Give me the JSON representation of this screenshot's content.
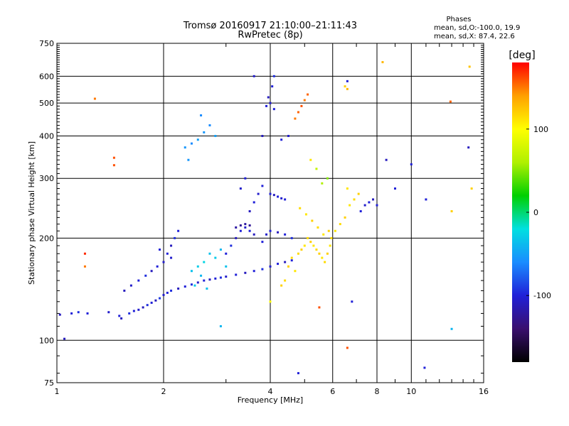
{
  "chart_data": {
    "type": "scatter",
    "title": "Tromsø 20160917 21:10:00–21:11:43",
    "subtitle": "RwPretec (8p)",
    "xlabel": "Frequency [MHz]",
    "ylabel": "Stationary phase Virtual Height [km]",
    "x_scale": "log",
    "y_scale": "log",
    "xlim": [
      1,
      16
    ],
    "ylim": [
      75,
      750
    ],
    "x_ticks": [
      1,
      2,
      4,
      6,
      8,
      10,
      16
    ],
    "y_ticks": [
      75,
      100,
      200,
      300,
      400,
      500,
      600,
      750
    ],
    "grid": true,
    "stats": {
      "heading": "Phases",
      "line1": "mean, sd,O:-100.0, 19.9",
      "line2": "mean, sd,X:  87.4, 22.6"
    },
    "colorbar": {
      "label": "[deg]",
      "ticks": [
        100,
        0,
        -100
      ],
      "tick_labels": [
        "100",
        "0",
        "-100"
      ],
      "range": [
        -180,
        180
      ],
      "colors": [
        "#000000",
        "#3a0f6e",
        "#2020d8",
        "#1a8cff",
        "#00e0e0",
        "#00d000",
        "#b0f000",
        "#ffff00",
        "#ffa000",
        "#ff0000"
      ]
    },
    "series": [
      {
        "points": [
          [
            1.02,
            119,
            -110
          ],
          [
            1.1,
            120,
            -100
          ],
          [
            1.15,
            121,
            -95
          ],
          [
            1.22,
            120,
            -100
          ],
          [
            1.4,
            121,
            -105
          ],
          [
            1.5,
            118,
            -100
          ],
          [
            1.52,
            116,
            -110
          ],
          [
            1.6,
            120,
            -95
          ],
          [
            1.65,
            122,
            -100
          ],
          [
            1.7,
            123,
            -105
          ],
          [
            1.75,
            125,
            -110
          ],
          [
            1.8,
            127,
            -95
          ],
          [
            1.85,
            129,
            -100
          ],
          [
            1.9,
            131,
            -110
          ],
          [
            1.95,
            133,
            -90
          ],
          [
            2.0,
            136,
            -105
          ],
          [
            2.05,
            138,
            -100
          ],
          [
            2.1,
            140,
            -95
          ],
          [
            2.2,
            142,
            -110
          ],
          [
            2.3,
            144,
            -100
          ],
          [
            2.4,
            146,
            -95
          ],
          [
            2.5,
            148,
            -105
          ],
          [
            2.6,
            150,
            -100
          ],
          [
            2.7,
            151,
            -110
          ],
          [
            2.8,
            152,
            -100
          ],
          [
            2.9,
            153,
            -95
          ],
          [
            3.0,
            154,
            -105
          ],
          [
            3.2,
            156,
            -100
          ],
          [
            3.4,
            158,
            -110
          ],
          [
            3.6,
            160,
            -100
          ],
          [
            3.8,
            162,
            -95
          ],
          [
            4.0,
            165,
            -105
          ],
          [
            4.2,
            168,
            -100
          ],
          [
            4.4,
            170,
            -110
          ],
          [
            4.6,
            172,
            -100
          ],
          [
            1.55,
            140,
            -110
          ],
          [
            1.62,
            145,
            -105
          ],
          [
            1.7,
            150,
            -100
          ],
          [
            1.78,
            155,
            -95
          ],
          [
            1.85,
            160,
            -110
          ],
          [
            1.92,
            165,
            -100
          ],
          [
            2.0,
            170,
            -105
          ],
          [
            2.05,
            180,
            -100
          ],
          [
            2.1,
            190,
            -110
          ],
          [
            2.15,
            200,
            -95
          ],
          [
            2.2,
            210,
            -100
          ],
          [
            2.1,
            175,
            -105
          ],
          [
            1.95,
            185,
            -100
          ],
          [
            2.4,
            160,
            -35
          ],
          [
            2.5,
            165,
            -30
          ],
          [
            2.55,
            155,
            -40
          ],
          [
            2.6,
            170,
            -25
          ],
          [
            2.7,
            180,
            -35
          ],
          [
            2.8,
            175,
            -30
          ],
          [
            2.9,
            185,
            -40
          ],
          [
            3.0,
            165,
            -35
          ],
          [
            2.45,
            145,
            -30
          ],
          [
            2.65,
            142,
            -35
          ],
          [
            3.0,
            180,
            -100
          ],
          [
            3.1,
            190,
            -95
          ],
          [
            3.2,
            200,
            -110
          ],
          [
            3.3,
            210,
            -100
          ],
          [
            3.4,
            215,
            -105
          ],
          [
            3.5,
            210,
            -100
          ],
          [
            3.6,
            205,
            -110
          ],
          [
            3.2,
            215,
            -120
          ],
          [
            3.3,
            218,
            -125
          ],
          [
            3.4,
            220,
            -120
          ],
          [
            3.5,
            218,
            -125
          ],
          [
            3.8,
            195,
            -100
          ],
          [
            3.9,
            205,
            -105
          ],
          [
            4.0,
            210,
            -100
          ],
          [
            4.2,
            208,
            -110
          ],
          [
            4.4,
            205,
            -100
          ],
          [
            4.6,
            200,
            -95
          ],
          [
            3.6,
            255,
            -100
          ],
          [
            3.7,
            270,
            -105
          ],
          [
            3.8,
            285,
            -100
          ],
          [
            3.5,
            240,
            -110
          ],
          [
            3.4,
            300,
            -100
          ],
          [
            3.3,
            280,
            -105
          ],
          [
            4.0,
            270,
            -100
          ],
          [
            4.1,
            268,
            -110
          ],
          [
            4.2,
            265,
            -100
          ],
          [
            4.3,
            262,
            -105
          ],
          [
            4.4,
            260,
            -100
          ],
          [
            2.3,
            370,
            -55
          ],
          [
            2.4,
            380,
            -60
          ],
          [
            2.5,
            390,
            -50
          ],
          [
            2.6,
            410,
            -55
          ],
          [
            2.7,
            430,
            -60
          ],
          [
            2.8,
            400,
            -50
          ],
          [
            2.35,
            340,
            -55
          ],
          [
            2.55,
            460,
            -60
          ],
          [
            3.9,
            490,
            -100
          ],
          [
            4.0,
            500,
            -105
          ],
          [
            4.1,
            480,
            -100
          ],
          [
            3.95,
            520,
            -110
          ],
          [
            4.05,
            560,
            -100
          ],
          [
            4.1,
            600,
            -95
          ],
          [
            3.6,
            600,
            -105
          ],
          [
            3.8,
            400,
            -110
          ],
          [
            4.3,
            390,
            -100
          ],
          [
            4.5,
            400,
            -105
          ],
          [
            4.8,
            180,
            115
          ],
          [
            4.9,
            185,
            120
          ],
          [
            5.0,
            190,
            110
          ],
          [
            5.1,
            200,
            115
          ],
          [
            5.2,
            195,
            120
          ],
          [
            5.3,
            190,
            110
          ],
          [
            5.4,
            185,
            115
          ],
          [
            5.5,
            180,
            120
          ],
          [
            5.6,
            175,
            110
          ],
          [
            5.7,
            170,
            115
          ],
          [
            5.8,
            180,
            120
          ],
          [
            5.9,
            190,
            110
          ],
          [
            5.95,
            200,
            115
          ],
          [
            5.85,
            210,
            120
          ],
          [
            5.65,
            205,
            110
          ],
          [
            5.45,
            215,
            115
          ],
          [
            5.25,
            225,
            120
          ],
          [
            5.05,
            235,
            110
          ],
          [
            4.85,
            245,
            115
          ],
          [
            4.5,
            165,
            120
          ],
          [
            4.6,
            175,
            115
          ],
          [
            4.7,
            160,
            110
          ],
          [
            4.4,
            150,
            115
          ],
          [
            4.3,
            145,
            120
          ],
          [
            6.1,
            210,
            110
          ],
          [
            6.3,
            220,
            115
          ],
          [
            6.5,
            230,
            120
          ],
          [
            6.7,
            250,
            110
          ],
          [
            6.9,
            260,
            115
          ],
          [
            7.1,
            270,
            120
          ],
          [
            6.6,
            280,
            110
          ],
          [
            5.6,
            290,
            60
          ],
          [
            5.8,
            300,
            50
          ],
          [
            5.4,
            320,
            70
          ],
          [
            5.2,
            340,
            110
          ],
          [
            4.7,
            450,
            150
          ],
          [
            4.8,
            470,
            155
          ],
          [
            4.9,
            490,
            160
          ],
          [
            5.0,
            510,
            150
          ],
          [
            5.1,
            530,
            155
          ],
          [
            6.6,
            550,
            130
          ],
          [
            6.6,
            580,
            -100
          ],
          [
            6.5,
            560,
            120
          ],
          [
            7.2,
            240,
            -100
          ],
          [
            7.4,
            250,
            -105
          ],
          [
            7.6,
            255,
            -100
          ],
          [
            7.8,
            260,
            -110
          ],
          [
            8.0,
            250,
            -100
          ],
          [
            9.0,
            280,
            -100
          ],
          [
            10.0,
            330,
            -100
          ],
          [
            8.5,
            340,
            -110
          ],
          [
            11.0,
            260,
            -100
          ],
          [
            8.3,
            660,
            130
          ],
          [
            14.6,
            640,
            125
          ],
          [
            14.5,
            370,
            -110
          ],
          [
            14.8,
            280,
            120
          ],
          [
            13.0,
            240,
            120
          ],
          [
            12.9,
            505,
            155
          ],
          [
            13.0,
            108,
            -40
          ],
          [
            10.9,
            83,
            -100
          ],
          [
            6.6,
            95,
            160
          ],
          [
            6.8,
            130,
            -100
          ],
          [
            4.8,
            80,
            -100
          ],
          [
            5.5,
            125,
            160
          ],
          [
            4.0,
            130,
            100
          ],
          [
            2.9,
            110,
            -40
          ],
          [
            1.45,
            345,
            160
          ],
          [
            1.45,
            328,
            160
          ],
          [
            1.28,
            515,
            150
          ],
          [
            1.05,
            101,
            -110
          ],
          [
            1.2,
            165,
            150
          ],
          [
            1.2,
            180,
            170
          ]
        ]
      }
    ]
  }
}
